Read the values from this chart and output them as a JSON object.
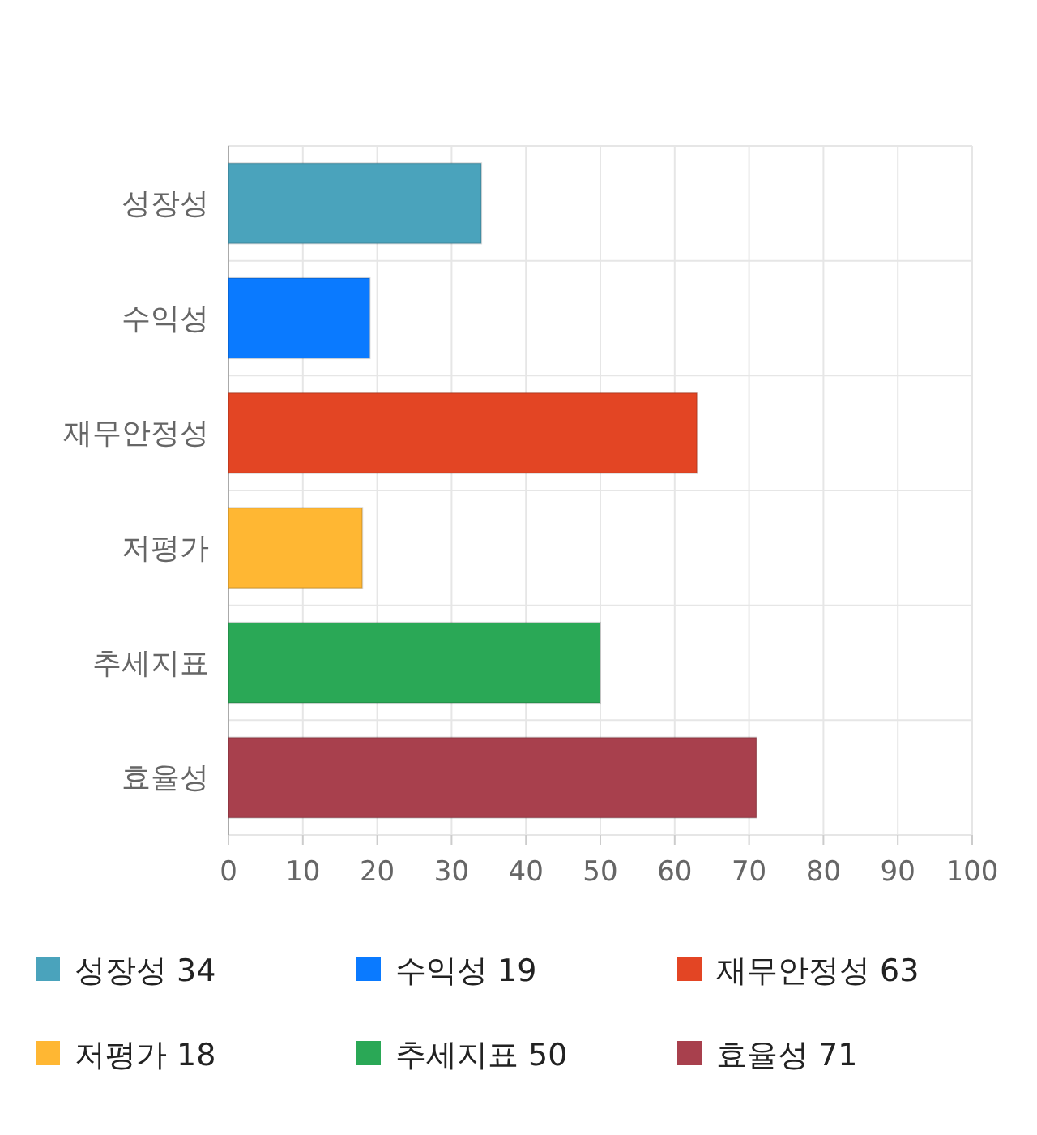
{
  "chart_data": {
    "type": "bar",
    "orientation": "horizontal",
    "categories": [
      "성장성",
      "수익성",
      "재무안정성",
      "저평가",
      "추세지표",
      "효율성"
    ],
    "series": [
      {
        "name": "성장성 34",
        "color": "#4aa3bc",
        "values": [
          34,
          null,
          null,
          null,
          null,
          null
        ]
      },
      {
        "name": "수익성 19",
        "color": "#0a7aff",
        "values": [
          null,
          19,
          null,
          null,
          null,
          null
        ]
      },
      {
        "name": "재무안정성 63",
        "color": "#e34524",
        "values": [
          null,
          null,
          63,
          null,
          null,
          null
        ]
      },
      {
        "name": "저평가 18",
        "color": "#ffb733",
        "values": [
          null,
          null,
          null,
          18,
          null,
          null
        ]
      },
      {
        "name": "추세지표 50",
        "color": "#2aa856",
        "values": [
          null,
          null,
          null,
          null,
          50,
          null
        ]
      },
      {
        "name": "효율성 71",
        "color": "#a8404d",
        "values": [
          null,
          null,
          null,
          null,
          null,
          71
        ]
      }
    ],
    "xlim": [
      0,
      100
    ],
    "xticks": [
      0,
      10,
      20,
      30,
      40,
      50,
      60,
      70,
      80,
      90,
      100
    ],
    "grid": true,
    "legend": "bottom"
  }
}
